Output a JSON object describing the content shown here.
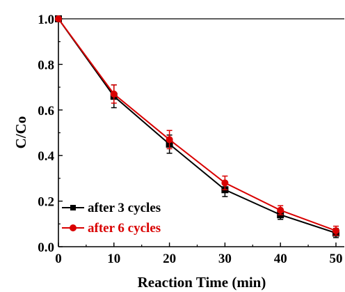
{
  "chart_data": {
    "type": "line",
    "title": "",
    "xlabel": "Reaction Time (min)",
    "ylabel": "C/Co",
    "xlim": [
      0,
      50
    ],
    "ylim": [
      0.0,
      1.0
    ],
    "x_ticks": [
      "0",
      "10",
      "20",
      "30",
      "40",
      "50"
    ],
    "y_ticks": [
      "0.0",
      "0.2",
      "0.4",
      "0.6",
      "0.8",
      "1.0"
    ],
    "x": [
      0,
      10,
      20,
      30,
      40,
      50
    ],
    "series": [
      {
        "name": "after 3 cycles",
        "color": "#000000",
        "marker": "square",
        "values": [
          1.0,
          0.66,
          0.45,
          0.25,
          0.14,
          0.06
        ],
        "errors": [
          0.0,
          0.05,
          0.04,
          0.03,
          0.02,
          0.02
        ]
      },
      {
        "name": "after 6 cycles",
        "color": "#d90000",
        "marker": "circle",
        "values": [
          1.0,
          0.67,
          0.47,
          0.28,
          0.16,
          0.07
        ],
        "errors": [
          0.0,
          0.04,
          0.04,
          0.03,
          0.02,
          0.02
        ]
      }
    ],
    "grid": false,
    "legend_position": "bottom-left"
  }
}
